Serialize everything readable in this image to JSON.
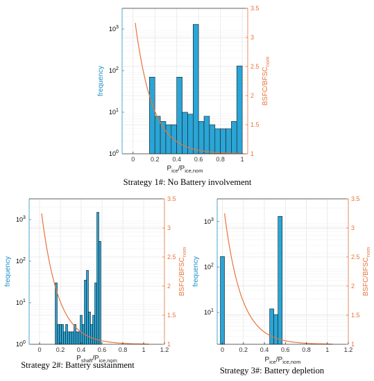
{
  "colors": {
    "bar_fill": "#2aa5d6",
    "bar_edge": "#1a1a1a",
    "left_axis": "#1f8fc4",
    "right_axis": "#e8743b",
    "curve": "#e8743b",
    "grid": "#e6e6e6"
  },
  "chart_data": [
    {
      "type": "bar",
      "caption": "Strategy 1#: No Battery involvement",
      "xlabel": {
        "main": "P",
        "sub": "ice",
        "tail": "/P",
        "sub2": "ice,nom"
      },
      "ylabel_left": "frequency",
      "ylabel_right": {
        "main": "BSFC/BFSC",
        "sub": "nom"
      },
      "xlim": [
        -0.1,
        1.05
      ],
      "ylim_left_log10": [
        0,
        3.5
      ],
      "ylim_right": [
        1,
        3.5
      ],
      "grid": true,
      "xticks": [
        {
          "v": 0,
          "t": "0"
        },
        {
          "v": 0.2,
          "t": "0.2"
        },
        {
          "v": 0.4,
          "t": "0.4"
        },
        {
          "v": 0.6,
          "t": "0.6"
        },
        {
          "v": 0.8,
          "t": "0.8"
        },
        {
          "v": 1,
          "t": "1"
        }
      ],
      "yticks_left": [
        {
          "e": 0,
          "t": "10",
          "s": "0"
        },
        {
          "e": 1,
          "t": "10",
          "s": "1"
        },
        {
          "e": 2,
          "t": "10",
          "s": "2"
        },
        {
          "e": 3,
          "t": "10",
          "s": "3"
        }
      ],
      "yticks_right": [
        {
          "v": 1,
          "t": "1"
        },
        {
          "v": 1.5,
          "t": "1.5"
        },
        {
          "v": 2,
          "t": "2"
        },
        {
          "v": 2.5,
          "t": "2.5"
        },
        {
          "v": 3,
          "t": "3"
        },
        {
          "v": 3.5,
          "t": "3.5"
        }
      ],
      "bins": [
        {
          "x0": 0.15,
          "x1": 0.2,
          "y": 70
        },
        {
          "x0": 0.2,
          "x1": 0.25,
          "y": 8
        },
        {
          "x0": 0.25,
          "x1": 0.3,
          "y": 6
        },
        {
          "x0": 0.3,
          "x1": 0.35,
          "y": 5
        },
        {
          "x0": 0.35,
          "x1": 0.4,
          "y": 5
        },
        {
          "x0": 0.4,
          "x1": 0.45,
          "y": 70
        },
        {
          "x0": 0.45,
          "x1": 0.5,
          "y": 10
        },
        {
          "x0": 0.5,
          "x1": 0.55,
          "y": 9
        },
        {
          "x0": 0.55,
          "x1": 0.6,
          "y": 1300
        },
        {
          "x0": 0.6,
          "x1": 0.65,
          "y": 6
        },
        {
          "x0": 0.65,
          "x1": 0.7,
          "y": 8
        },
        {
          "x0": 0.7,
          "x1": 0.75,
          "y": 5
        },
        {
          "x0": 0.75,
          "x1": 0.8,
          "y": 4
        },
        {
          "x0": 0.8,
          "x1": 0.85,
          "y": 4
        },
        {
          "x0": 0.85,
          "x1": 0.9,
          "y": 4
        },
        {
          "x0": 0.9,
          "x1": 0.95,
          "y": 6
        },
        {
          "x0": 0.95,
          "x1": 1.0,
          "y": 130
        }
      ],
      "curve": {
        "x0": 0.02,
        "x1": 1.0,
        "y_start": 3.25
      }
    },
    {
      "type": "bar",
      "caption": "Strategy 2#: Battery sustainment",
      "xlabel": {
        "main": "P",
        "sub": "shaft",
        "tail": "/P",
        "sub2": "ice,nom"
      },
      "ylabel_left": "frequency",
      "ylabel_right": {
        "main": "BSFC/BFSC",
        "sub": "nom"
      },
      "xlim": [
        -0.1,
        1.2
      ],
      "ylim_left_log10": [
        0,
        3.5
      ],
      "ylim_right": [
        1,
        3.5
      ],
      "grid": true,
      "xticks": [
        {
          "v": 0,
          "t": "0"
        },
        {
          "v": 0.2,
          "t": "0.2"
        },
        {
          "v": 0.4,
          "t": "0.4"
        },
        {
          "v": 0.6,
          "t": "0.6"
        },
        {
          "v": 0.8,
          "t": "0.8"
        },
        {
          "v": 1,
          "t": "1"
        },
        {
          "v": 1.2,
          "t": "1.2"
        }
      ],
      "yticks_left": [
        {
          "e": 0,
          "t": "10",
          "s": "0"
        },
        {
          "e": 1,
          "t": "10",
          "s": "1"
        },
        {
          "e": 2,
          "t": "10",
          "s": "2"
        },
        {
          "e": 3,
          "t": "10",
          "s": "3"
        }
      ],
      "yticks_right": [
        {
          "v": 1,
          "t": "1"
        },
        {
          "v": 1.5,
          "t": "1.5"
        },
        {
          "v": 2,
          "t": "2"
        },
        {
          "v": 2.5,
          "t": "2.5"
        },
        {
          "v": 3,
          "t": "3"
        },
        {
          "v": 3.5,
          "t": "3.5"
        }
      ],
      "bins": [
        {
          "x0": 0.15,
          "x1": 0.17,
          "y": 30
        },
        {
          "x0": 0.17,
          "x1": 0.19,
          "y": 3
        },
        {
          "x0": 0.19,
          "x1": 0.21,
          "y": 3
        },
        {
          "x0": 0.21,
          "x1": 0.23,
          "y": 3
        },
        {
          "x0": 0.23,
          "x1": 0.25,
          "y": 2
        },
        {
          "x0": 0.25,
          "x1": 0.27,
          "y": 3
        },
        {
          "x0": 0.27,
          "x1": 0.29,
          "y": 2
        },
        {
          "x0": 0.29,
          "x1": 0.31,
          "y": 2
        },
        {
          "x0": 0.31,
          "x1": 0.33,
          "y": 2
        },
        {
          "x0": 0.33,
          "x1": 0.35,
          "y": 3
        },
        {
          "x0": 0.35,
          "x1": 0.37,
          "y": 2
        },
        {
          "x0": 0.37,
          "x1": 0.39,
          "y": 2
        },
        {
          "x0": 0.39,
          "x1": 0.41,
          "y": 5
        },
        {
          "x0": 0.41,
          "x1": 0.43,
          "y": 3
        },
        {
          "x0": 0.43,
          "x1": 0.45,
          "y": 35
        },
        {
          "x0": 0.45,
          "x1": 0.47,
          "y": 60
        },
        {
          "x0": 0.47,
          "x1": 0.49,
          "y": 6
        },
        {
          "x0": 0.49,
          "x1": 0.51,
          "y": 3
        },
        {
          "x0": 0.51,
          "x1": 0.53,
          "y": 5
        },
        {
          "x0": 0.53,
          "x1": 0.55,
          "y": 30
        },
        {
          "x0": 0.55,
          "x1": 0.57,
          "y": 1500
        },
        {
          "x0": 0.57,
          "x1": 0.59,
          "y": 300
        }
      ],
      "curve": {
        "x0": 0.02,
        "x1": 1.05,
        "y_start": 3.25
      }
    },
    {
      "type": "bar",
      "caption": "Strategy 3#: Battery depletion",
      "xlabel": {
        "main": "P",
        "sub": "ice",
        "tail": "/P",
        "sub2": "ice,nom"
      },
      "ylabel_left": "frequency",
      "ylabel_right": {
        "main": "BSFC/BFSC",
        "sub": "nom"
      },
      "xlim": [
        -0.05,
        1.2
      ],
      "ylim_left_log10": [
        0.3,
        3.5
      ],
      "ylim_right": [
        1,
        3.5
      ],
      "grid": true,
      "xticks": [
        {
          "v": 0,
          "t": "0"
        },
        {
          "v": 0.2,
          "t": "0.2"
        },
        {
          "v": 0.4,
          "t": "0.4"
        },
        {
          "v": 0.6,
          "t": "0.6"
        },
        {
          "v": 0.8,
          "t": "0.8"
        },
        {
          "v": 1,
          "t": "1"
        },
        {
          "v": 1.2,
          "t": "1.2"
        }
      ],
      "yticks_left": [
        {
          "e": 1,
          "t": "10",
          "s": "1"
        },
        {
          "e": 2,
          "t": "10",
          "s": "2"
        },
        {
          "e": 3,
          "t": "10",
          "s": "3"
        }
      ],
      "yticks_right": [
        {
          "v": 1,
          "t": "1"
        },
        {
          "v": 1.5,
          "t": "1.5"
        },
        {
          "v": 2,
          "t": "2"
        },
        {
          "v": 2.5,
          "t": "2.5"
        },
        {
          "v": 3,
          "t": "3"
        },
        {
          "v": 3.5,
          "t": "3.5"
        }
      ],
      "bins": [
        {
          "x0": -0.02,
          "x1": 0.02,
          "y": 170
        },
        {
          "x0": 0.45,
          "x1": 0.49,
          "y": 12
        },
        {
          "x0": 0.49,
          "x1": 0.53,
          "y": 9
        },
        {
          "x0": 0.53,
          "x1": 0.57,
          "y": 1300
        }
      ],
      "curve": {
        "x0": 0.02,
        "x1": 1.05,
        "y_start": 3.25
      }
    }
  ]
}
